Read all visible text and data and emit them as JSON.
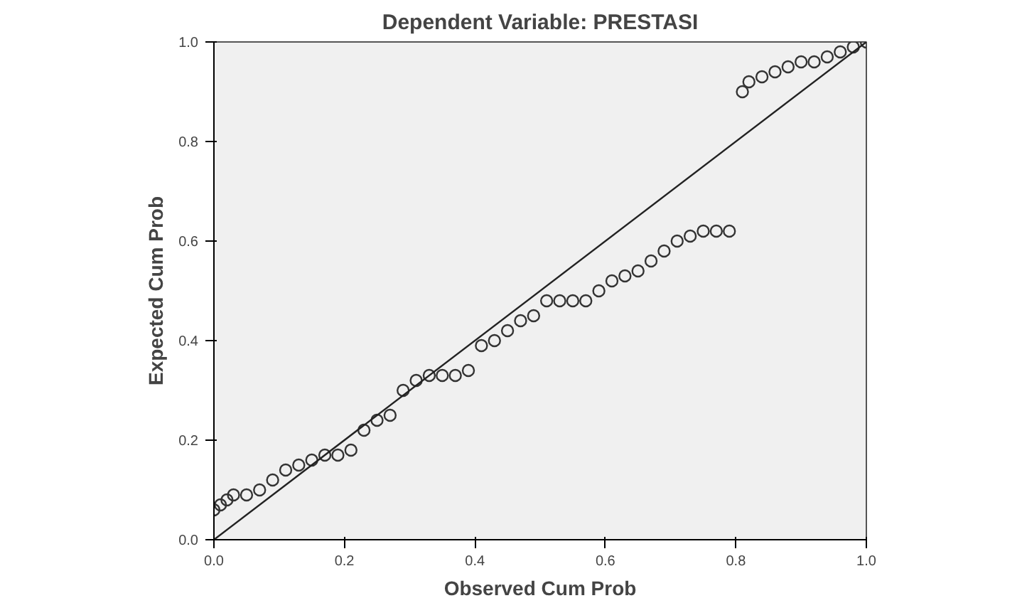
{
  "chart_data": {
    "type": "scatter",
    "title": "Dependent Variable: PRESTASI",
    "xlabel": "Observed Cum Prob",
    "ylabel": "Expected Cum Prob",
    "xlim": [
      0,
      1
    ],
    "ylim": [
      0,
      1
    ],
    "xticks": [
      {
        "value": 0,
        "label": "0.0"
      },
      {
        "value": 0.2,
        "label": "0.2"
      },
      {
        "value": 0.4,
        "label": "0.4"
      },
      {
        "value": 0.6,
        "label": "0.6"
      },
      {
        "value": 0.8,
        "label": "0.8"
      },
      {
        "value": 1,
        "label": "1.0"
      }
    ],
    "yticks": [
      {
        "value": 0,
        "label": "0.0"
      },
      {
        "value": 0.2,
        "label": "0.2"
      },
      {
        "value": 0.4,
        "label": "0.4"
      },
      {
        "value": 0.6,
        "label": "0.6"
      },
      {
        "value": 0.8,
        "label": "0.8"
      },
      {
        "value": 1,
        "label": "1.0"
      }
    ],
    "grid": false,
    "series": [
      {
        "marker": "circle",
        "color": "#333333",
        "x": [
          0.0,
          0.01,
          0.02,
          0.03,
          0.05,
          0.07,
          0.09,
          0.11,
          0.13,
          0.15,
          0.17,
          0.19,
          0.21,
          0.23,
          0.25,
          0.27,
          0.29,
          0.31,
          0.33,
          0.35,
          0.37,
          0.39,
          0.41,
          0.43,
          0.45,
          0.47,
          0.49,
          0.51,
          0.53,
          0.55,
          0.57,
          0.59,
          0.61,
          0.63,
          0.65,
          0.67,
          0.69,
          0.71,
          0.73,
          0.75,
          0.77,
          0.79,
          0.81,
          0.82,
          0.84,
          0.86,
          0.88,
          0.9,
          0.92,
          0.94,
          0.96,
          0.98,
          1.0
        ],
        "values": [
          0.06,
          0.07,
          0.08,
          0.09,
          0.09,
          0.1,
          0.12,
          0.14,
          0.15,
          0.16,
          0.17,
          0.17,
          0.18,
          0.22,
          0.24,
          0.25,
          0.3,
          0.32,
          0.33,
          0.33,
          0.33,
          0.34,
          0.39,
          0.4,
          0.42,
          0.44,
          0.45,
          0.48,
          0.48,
          0.48,
          0.48,
          0.5,
          0.52,
          0.53,
          0.54,
          0.56,
          0.58,
          0.6,
          0.61,
          0.62,
          0.62,
          0.62,
          0.9,
          0.92,
          0.93,
          0.94,
          0.95,
          0.96,
          0.96,
          0.97,
          0.98,
          0.99,
          1.0
        ]
      },
      {
        "type": "line",
        "marker": "none",
        "color": "#222222",
        "x": [
          0,
          1
        ],
        "values": [
          0,
          1
        ]
      }
    ]
  }
}
